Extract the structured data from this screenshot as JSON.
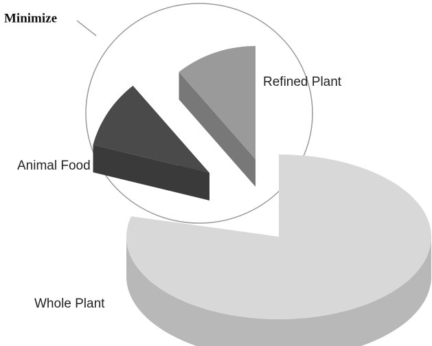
{
  "chart_data": {
    "type": "pie",
    "categories": [
      "Whole Plant",
      "Animal Food",
      "Refined Plant"
    ],
    "values": [
      79,
      10,
      11
    ],
    "colors": [
      "#d8d8d8",
      "#4a4a4a",
      "#9a9a9a"
    ],
    "annotations": [
      "Minimize"
    ]
  }
}
